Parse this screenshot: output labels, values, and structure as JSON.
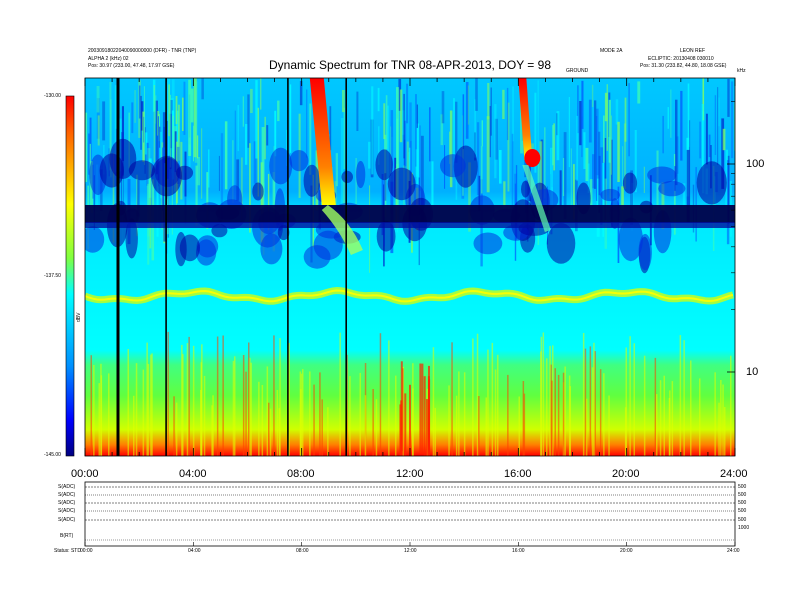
{
  "header": {
    "left_line1": "20030918022040090000000 (DFR) - TNR (TNP)",
    "left_line2": "ALPHA 2 (kHz) 02",
    "left_line3": "Pos: 30.97 (233.00, 47.48, 17.97 GSE)",
    "right_col1": "MODE 2A",
    "right_col2": "LEON REF",
    "right_line2": "ECLIPTIC: 20130408 030010",
    "right_line3": "Pos: 31.30 (233.82, 44.80, 18.08 GSE)",
    "mid_label": "GROUND",
    "corner_label": "kHz"
  },
  "chart_data": {
    "type": "heatmap",
    "title": "Dynamic Spectrum for TNR 08-APR-2013, DOY = 98",
    "xlabel": "",
    "ylabel": "",
    "x_range_hours": [
      0,
      24
    ],
    "x_ticks": [
      "00:00",
      "04:00",
      "08:00",
      "12:00",
      "16:00",
      "20:00",
      "24:00"
    ],
    "y_axis": "log",
    "y_ticks": [
      "100",
      "10"
    ],
    "colorbar": {
      "label": "dBV",
      "ticks": [
        "-130.00",
        "-137.50",
        "-145.00"
      ],
      "range": [
        -145,
        -130
      ],
      "colors": [
        "#00008b",
        "#0000ff",
        "#0090ff",
        "#00ffff",
        "#00ff80",
        "#ffff00",
        "#ff8000",
        "#ff0000"
      ]
    },
    "data_gap_lines_hours": [
      1.2,
      3.0,
      7.5,
      9.65
    ],
    "bursts": [
      {
        "name": "type III burst",
        "start_hours": 8.3,
        "end_hours": 11.0
      },
      {
        "name": "type III burst",
        "start_hours": 16.0,
        "end_hours": 17.2
      }
    ],
    "lower_panel": {
      "channels": [
        "S(ADC)",
        "S(ADC)",
        "S(ADC)",
        "S(ADC)",
        "S(ADC)",
        "B(RT)"
      ],
      "right_ticks": [
        "500",
        "500",
        "500",
        "500",
        "500",
        "1000"
      ],
      "status_label": "Status: STD",
      "x_ticks": [
        "00:00",
        "04:00",
        "08:00",
        "12:00",
        "16:00",
        "20:00",
        "24:00"
      ]
    }
  }
}
